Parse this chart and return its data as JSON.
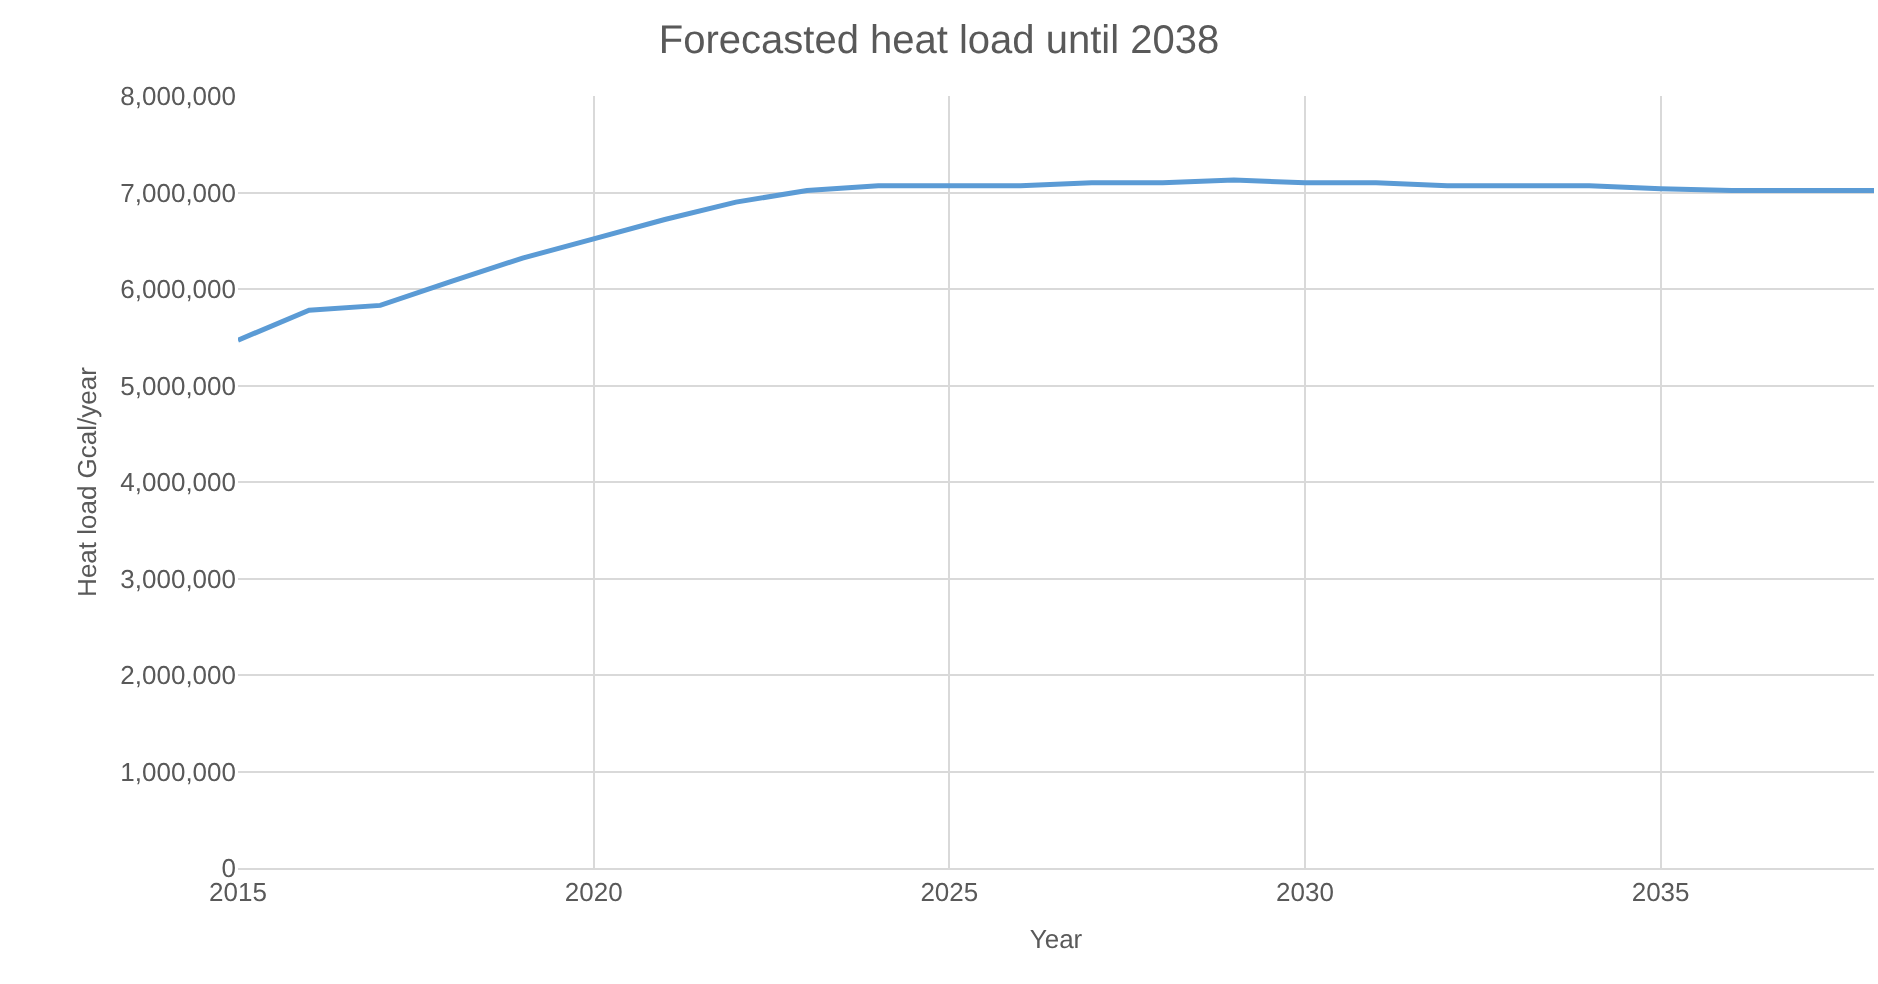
{
  "chart_data": {
    "type": "line",
    "title": "Forecasted heat load until 2038",
    "xlabel": "Year",
    "ylabel": "Heat load Gcal/year",
    "x": [
      2015,
      2016,
      2017,
      2018,
      2019,
      2020,
      2021,
      2022,
      2023,
      2024,
      2025,
      2026,
      2027,
      2028,
      2029,
      2030,
      2031,
      2032,
      2033,
      2034,
      2035,
      2036,
      2037,
      2038
    ],
    "series": [
      {
        "color": "#5b9bd5",
        "values": [
          5470000,
          5780000,
          5830000,
          6080000,
          6320000,
          6520000,
          6720000,
          6900000,
          7020000,
          7070000,
          7070000,
          7070000,
          7100000,
          7100000,
          7130000,
          7100000,
          7100000,
          7070000,
          7070000,
          7070000,
          7040000,
          7020000,
          7020000,
          7020000
        ]
      }
    ],
    "xlim": [
      2015,
      2038
    ],
    "xticks": [
      2015,
      2020,
      2025,
      2030,
      2035
    ],
    "ylim": [
      0,
      8000000
    ],
    "yticks": [
      {
        "value": 0,
        "label": "0"
      },
      {
        "value": 1000000,
        "label": "1,000,000"
      },
      {
        "value": 2000000,
        "label": "2,000,000"
      },
      {
        "value": 3000000,
        "label": "3,000,000"
      },
      {
        "value": 4000000,
        "label": "4,000,000"
      },
      {
        "value": 5000000,
        "label": "5,000,000"
      },
      {
        "value": 6000000,
        "label": "6,000,000"
      },
      {
        "value": 7000000,
        "label": "7,000,000"
      },
      {
        "value": 8000000,
        "label": "8,000,000"
      }
    ],
    "grid": true,
    "marker": "none",
    "line_style": "solid"
  }
}
